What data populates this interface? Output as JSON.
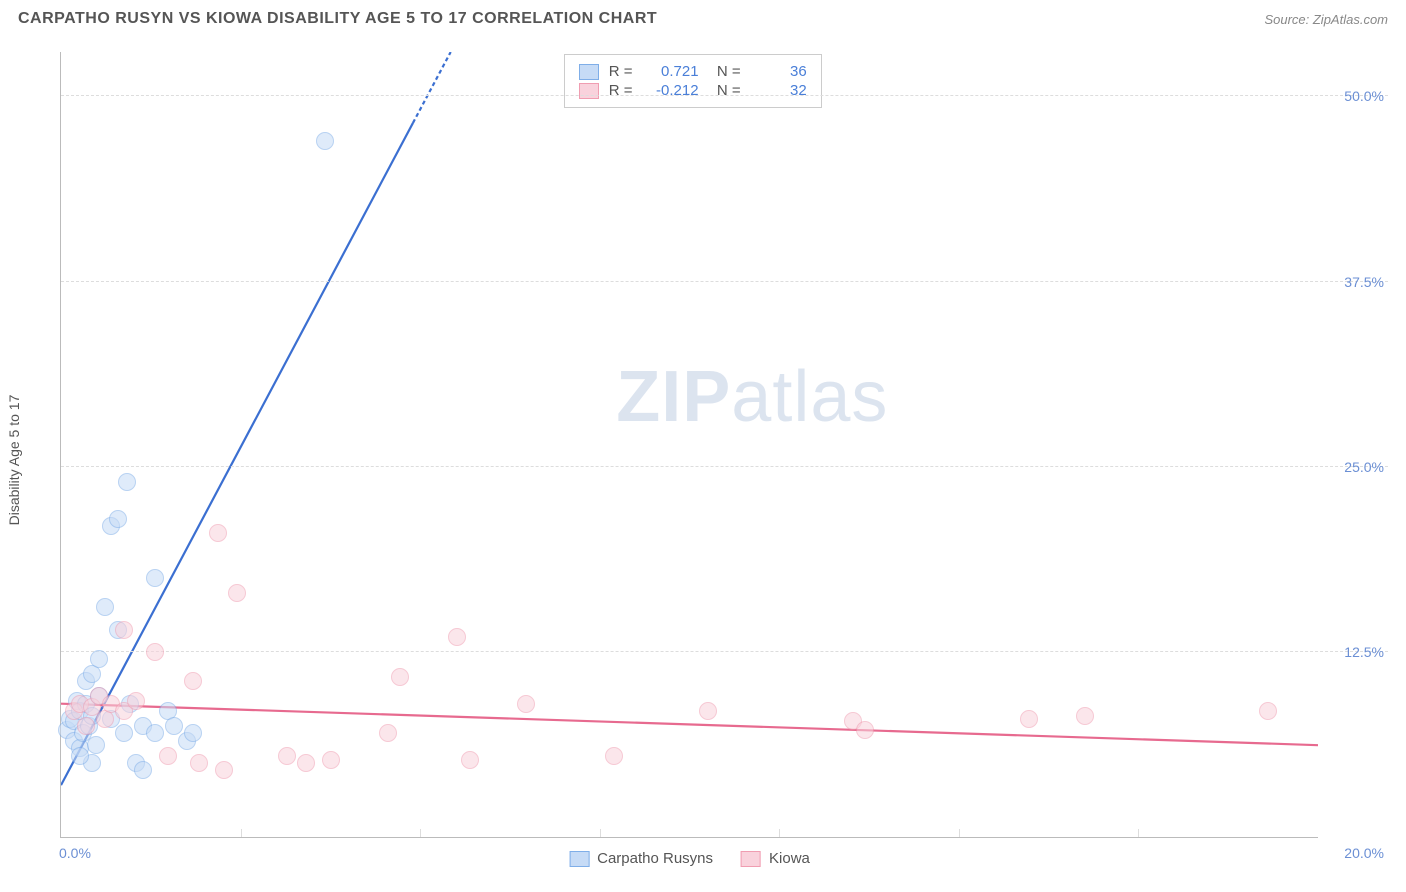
{
  "header": {
    "title": "CARPATHO RUSYN VS KIOWA DISABILITY AGE 5 TO 17 CORRELATION CHART",
    "source": "Source: ZipAtlas.com"
  },
  "ylabel": "Disability Age 5 to 17",
  "watermark": {
    "bold": "ZIP",
    "rest": "atlas"
  },
  "chart": {
    "type": "scatter",
    "xlim": [
      0,
      20
    ],
    "ylim": [
      0,
      53
    ],
    "x_ticks_minor": [
      2.86,
      5.71,
      8.57,
      11.43,
      14.29,
      17.14
    ],
    "y_ticks": [
      {
        "v": 12.5,
        "label": "12.5%"
      },
      {
        "v": 25.0,
        "label": "25.0%"
      },
      {
        "v": 37.5,
        "label": "37.5%"
      },
      {
        "v": 50.0,
        "label": "50.0%"
      }
    ],
    "x_min_label": "0.0%",
    "x_max_label": "20.0%",
    "background_color": "#ffffff",
    "grid_color": "#dddddd",
    "axis_color": "#bbbbbb",
    "tick_label_color": "#6b8fd4",
    "point_radius": 9,
    "point_opacity": 0.55,
    "series": [
      {
        "name": "Carpatho Rusyns",
        "color_fill": "#c6dbf6",
        "color_stroke": "#7faee8",
        "r_value": "0.721",
        "n_value": "36",
        "trend": {
          "x1": 0.0,
          "y1": 3.5,
          "x2": 6.2,
          "y2": 53.0,
          "dash_after_x": 5.6,
          "color": "#3b6fd1",
          "width": 2.2
        },
        "points": [
          [
            0.1,
            7.2
          ],
          [
            0.15,
            8.0
          ],
          [
            0.2,
            6.5
          ],
          [
            0.2,
            7.8
          ],
          [
            0.25,
            9.2
          ],
          [
            0.3,
            6.0
          ],
          [
            0.3,
            8.5
          ],
          [
            0.35,
            7.0
          ],
          [
            0.4,
            9.0
          ],
          [
            0.4,
            10.5
          ],
          [
            0.45,
            7.5
          ],
          [
            0.5,
            8.2
          ],
          [
            0.5,
            11.0
          ],
          [
            0.55,
            6.2
          ],
          [
            0.6,
            9.5
          ],
          [
            0.6,
            12.0
          ],
          [
            0.7,
            15.5
          ],
          [
            0.8,
            8.0
          ],
          [
            0.8,
            21.0
          ],
          [
            0.9,
            21.5
          ],
          [
            0.9,
            14.0
          ],
          [
            1.0,
            7.0
          ],
          [
            1.05,
            24.0
          ],
          [
            1.1,
            9.0
          ],
          [
            1.2,
            5.0
          ],
          [
            1.3,
            7.5
          ],
          [
            1.5,
            17.5
          ],
          [
            1.5,
            7.0
          ],
          [
            1.7,
            8.5
          ],
          [
            1.8,
            7.5
          ],
          [
            2.0,
            6.5
          ],
          [
            2.1,
            7.0
          ],
          [
            0.5,
            5.0
          ],
          [
            0.3,
            5.5
          ],
          [
            1.3,
            4.5
          ],
          [
            4.2,
            47.0
          ]
        ]
      },
      {
        "name": "Kiowa",
        "color_fill": "#f9d2dc",
        "color_stroke": "#f09db1",
        "r_value": "-0.212",
        "n_value": "32",
        "trend": {
          "x1": 0.0,
          "y1": 9.0,
          "x2": 20.0,
          "y2": 6.2,
          "color": "#e76a8f",
          "width": 2.2
        },
        "points": [
          [
            0.2,
            8.5
          ],
          [
            0.3,
            9.0
          ],
          [
            0.4,
            7.5
          ],
          [
            0.5,
            8.8
          ],
          [
            0.6,
            9.5
          ],
          [
            0.7,
            8.0
          ],
          [
            0.8,
            9.0
          ],
          [
            1.0,
            8.5
          ],
          [
            1.2,
            9.2
          ],
          [
            1.0,
            14.0
          ],
          [
            1.5,
            12.5
          ],
          [
            1.7,
            5.5
          ],
          [
            2.1,
            10.5
          ],
          [
            2.5,
            20.5
          ],
          [
            2.6,
            4.5
          ],
          [
            2.8,
            16.5
          ],
          [
            3.6,
            5.5
          ],
          [
            3.9,
            5.0
          ],
          [
            4.3,
            5.2
          ],
          [
            5.2,
            7.0
          ],
          [
            5.4,
            10.8
          ],
          [
            6.3,
            13.5
          ],
          [
            6.5,
            5.2
          ],
          [
            7.4,
            9.0
          ],
          [
            8.8,
            5.5
          ],
          [
            10.3,
            8.5
          ],
          [
            12.6,
            7.8
          ],
          [
            12.8,
            7.2
          ],
          [
            15.4,
            8.0
          ],
          [
            16.3,
            8.2
          ],
          [
            19.2,
            8.5
          ],
          [
            2.2,
            5.0
          ]
        ]
      }
    ],
    "legend_bottom": [
      {
        "label": "Carpatho Rusyns",
        "fill": "#c6dbf6",
        "stroke": "#7faee8"
      },
      {
        "label": "Kiowa",
        "fill": "#f9d2dc",
        "stroke": "#f09db1"
      }
    ],
    "legend_top_labels": {
      "r": "R  =",
      "n": "N  ="
    }
  }
}
